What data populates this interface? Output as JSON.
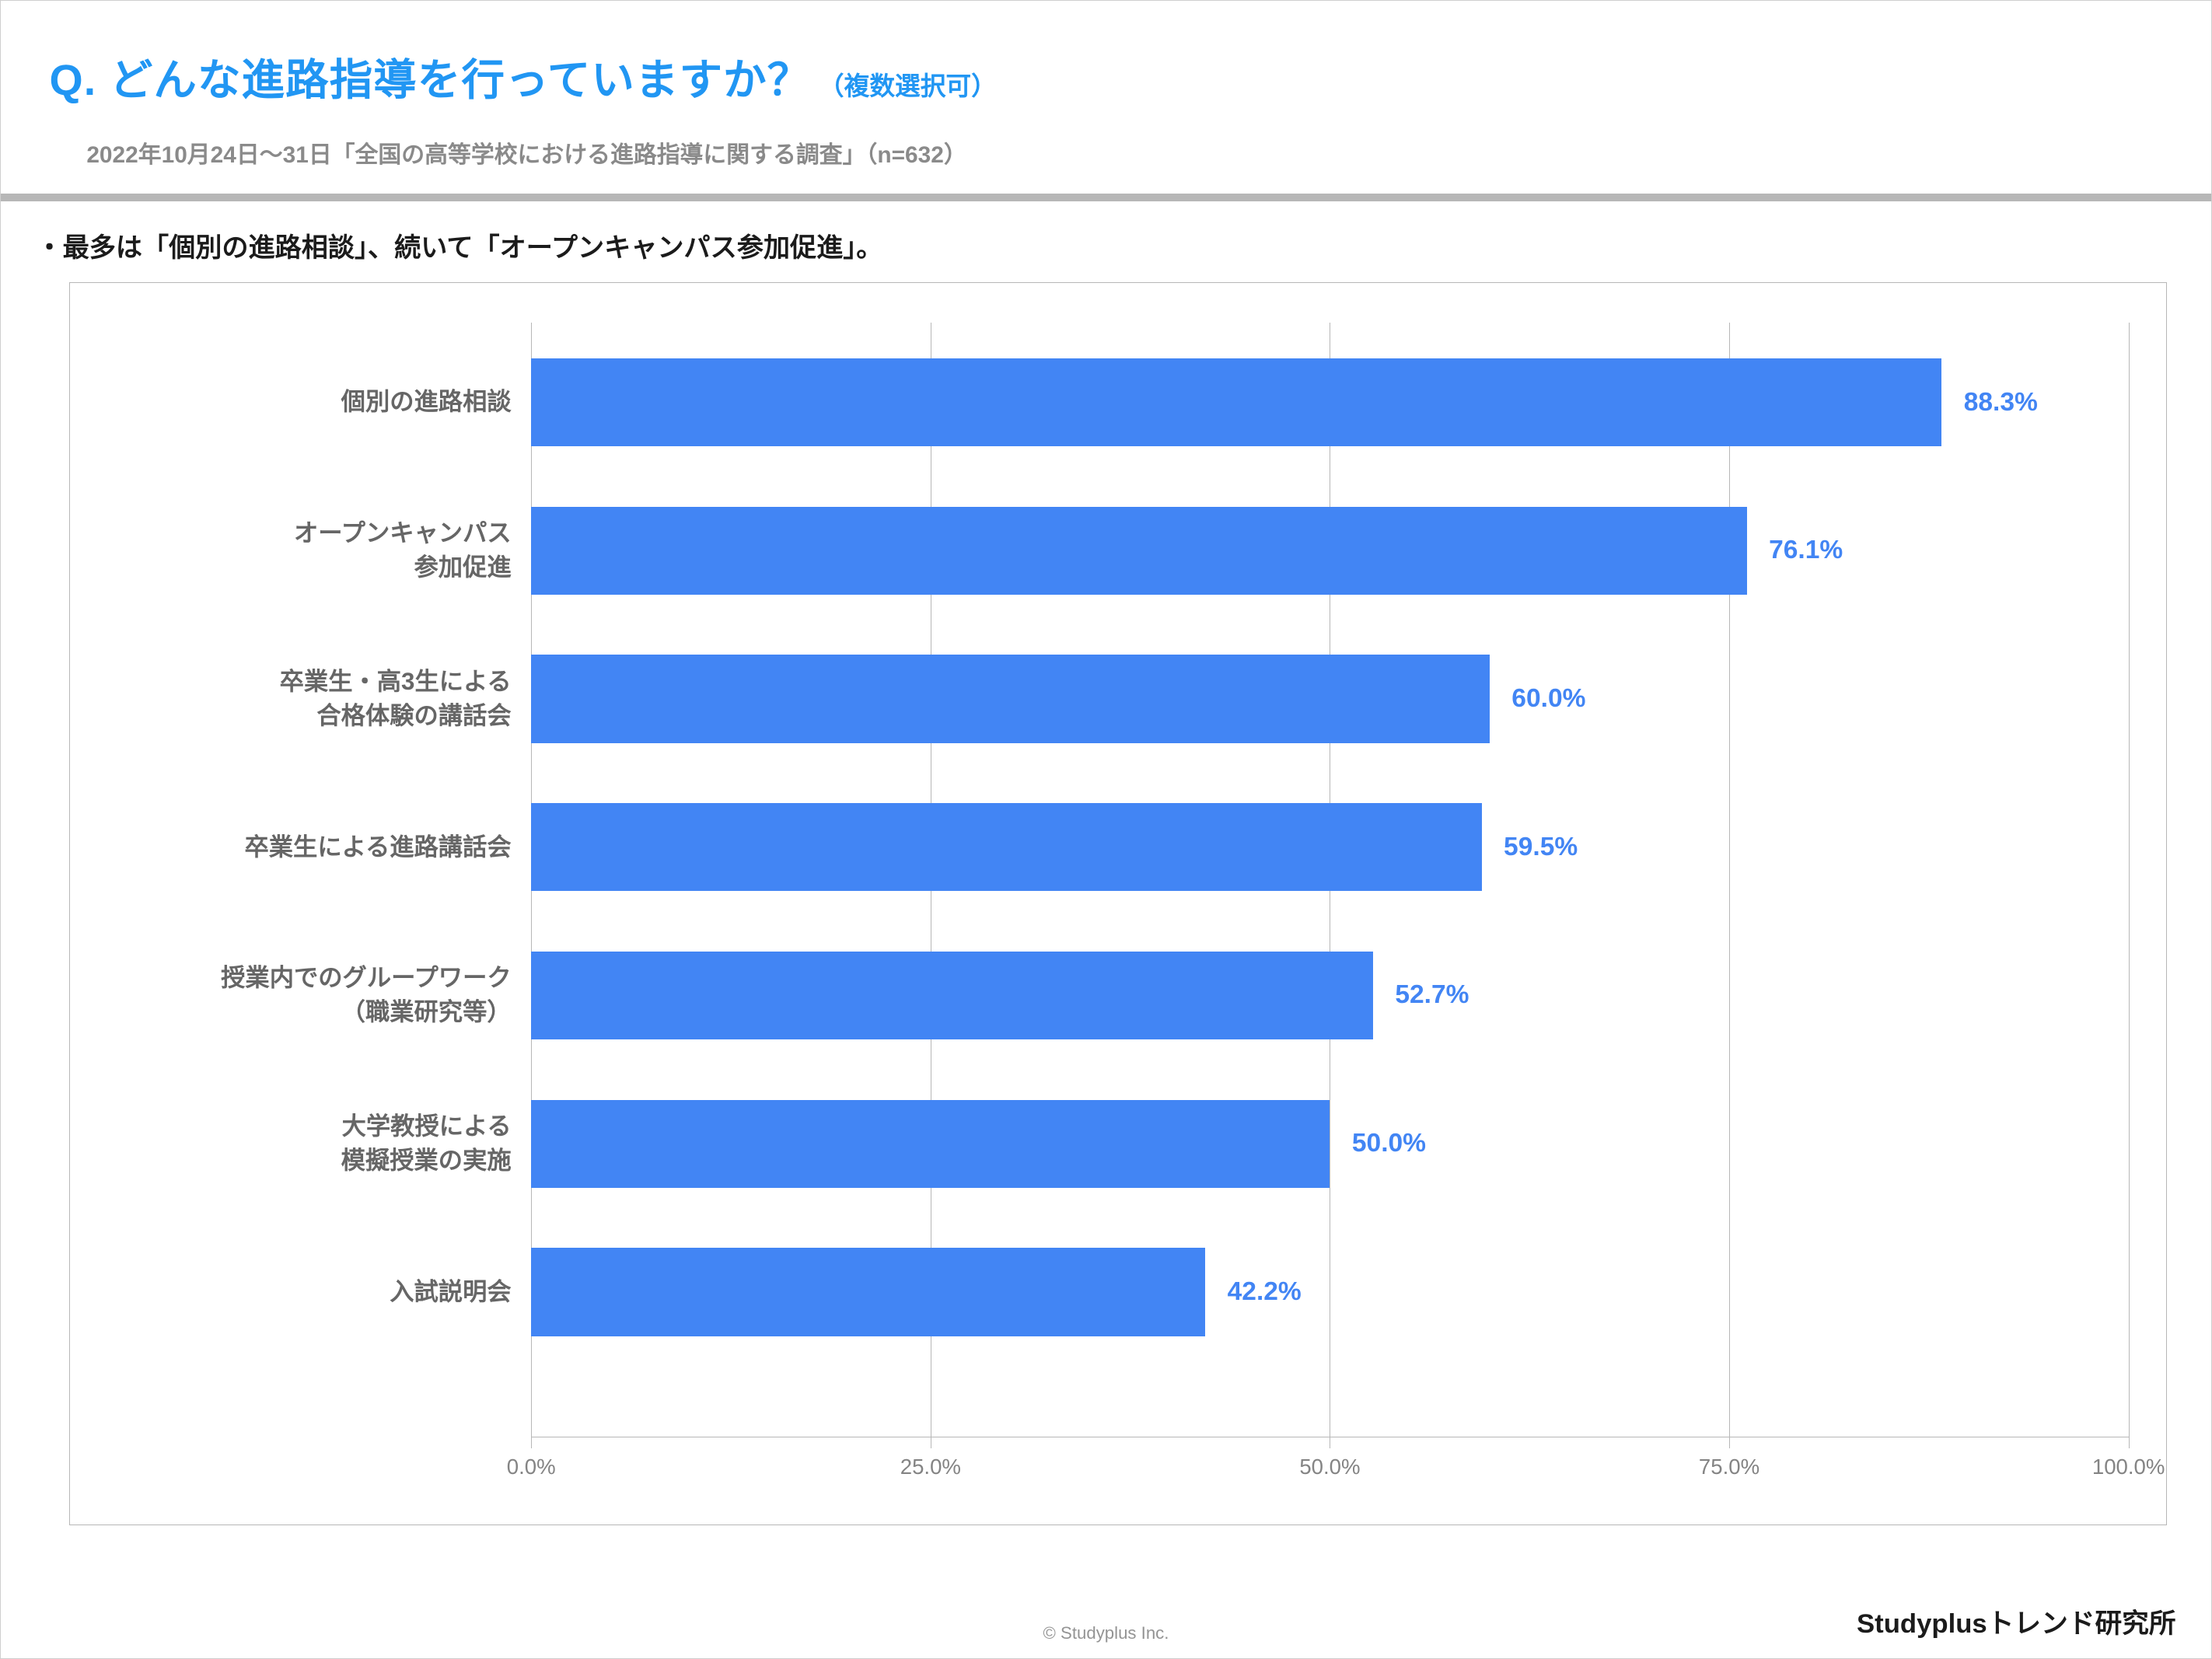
{
  "header": {
    "title": "Q. どんな進路指導を行っていますか？",
    "title_suffix": "（複数選択可）",
    "subtitle": "2022年10月24日～31日「全国の高等学校における進路指導に関する調査」（n=632）",
    "title_color": "#2196f3",
    "subtitle_color": "#8a8a8a"
  },
  "insight": "・最多は「個別の進路相談」、続いて「オープンキャンパス参加促進」。",
  "chart": {
    "type": "bar-horizontal",
    "categories": [
      "個別の進路相談",
      "オープンキャンパス\n参加促進",
      "卒業生・高3生による\n合格体験の講話会",
      "卒業生による進路講話会",
      "授業内でのグループワーク\n（職業研究等）",
      "大学教授による\n模擬授業の実施",
      "入試説明会"
    ],
    "values": [
      88.3,
      76.1,
      60.0,
      59.5,
      52.7,
      50.0,
      42.2
    ],
    "value_labels": [
      "88.3%",
      "76.1%",
      "60.0%",
      "59.5%",
      "52.7%",
      "50.0%",
      "42.2%"
    ],
    "bar_color": "#4285f4",
    "value_label_color": "#4285f4",
    "category_label_color": "#666666",
    "x_ticks": [
      0.0,
      25.0,
      50.0,
      75.0,
      100.0
    ],
    "x_tick_labels": [
      "0.0%",
      "25.0%",
      "50.0%",
      "75.0%",
      "100.0%"
    ],
    "xlim": [
      0,
      100
    ],
    "grid_color": "#b7b7b7",
    "tick_label_color": "#848484",
    "background_color": "#ffffff",
    "bar_height_pct": 7.9,
    "row_gap_pct": 13.3,
    "top_offset_pct": 3.2,
    "category_label_fontsize_vw": 1.1,
    "value_label_fontsize_vw": 1.18,
    "tick_label_fontsize_vw": 0.97
  },
  "footer": {
    "left": "© Studyplus Inc.",
    "right": "Studyplusトレンド研究所",
    "left_color": "#949494",
    "right_color": "#1b1b1b"
  },
  "slide_border_color": "#cfcfcf",
  "divider_color": "#b7b7b7"
}
